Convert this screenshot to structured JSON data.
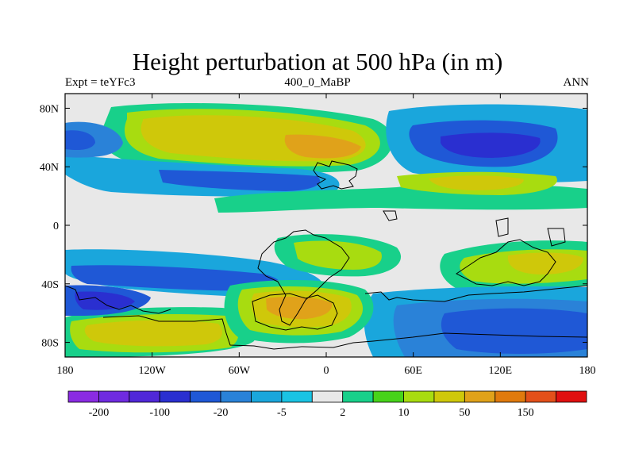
{
  "title": "Height perturbation at 500 hPa (in m)",
  "subtitle_left": "Expt = teYFc3",
  "subtitle_center": "400_0_MaBP",
  "subtitle_right": "ANN",
  "lat_ticks": [
    {
      "label": "80N",
      "lat": 80
    },
    {
      "label": "40N",
      "lat": 40
    },
    {
      "label": "0",
      "lat": 0
    },
    {
      "label": "40S",
      "lat": -40
    },
    {
      "label": "80S",
      "lat": -80
    }
  ],
  "lon_ticks": [
    {
      "label": "180",
      "lon": -180
    },
    {
      "label": "120W",
      "lon": -120
    },
    {
      "label": "60W",
      "lon": -60
    },
    {
      "label": "0",
      "lon": 0
    },
    {
      "label": "60E",
      "lon": 60
    },
    {
      "label": "120E",
      "lon": 120
    },
    {
      "label": "180",
      "lon": 180
    }
  ],
  "colorbar": {
    "colors": [
      "#8a2be2",
      "#6f2be0",
      "#5027d8",
      "#2a2fd0",
      "#1f58d6",
      "#2a82d8",
      "#1aa6dc",
      "#1ac3e3",
      "#e8e8e8",
      "#18d08a",
      "#47d31a",
      "#a8dc10",
      "#cfc80a",
      "#e0a21a",
      "#e07a0d",
      "#e3501a",
      "#e01010"
    ],
    "labels": [
      {
        "text": "-200",
        "index": 1
      },
      {
        "text": "-100",
        "index": 3
      },
      {
        "text": "-20",
        "index": 5
      },
      {
        "text": "-5",
        "index": 7
      },
      {
        "text": "2",
        "index": 9
      },
      {
        "text": "10",
        "index": 11
      },
      {
        "text": "50",
        "index": 13
      },
      {
        "text": "150",
        "index": 15
      }
    ]
  }
}
